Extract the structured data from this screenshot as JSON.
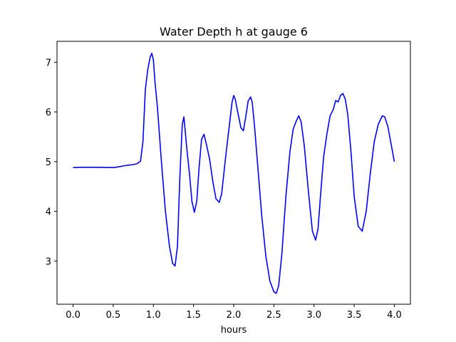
{
  "chart_data": {
    "type": "line",
    "title": "Water Depth h at gauge 6",
    "xlabel": "hours",
    "ylabel": "",
    "xlim": [
      -0.2,
      4.2
    ],
    "ylim": [
      2.13,
      7.42
    ],
    "xticks": [
      0.0,
      0.5,
      1.0,
      1.5,
      2.0,
      2.5,
      3.0,
      3.5,
      4.0
    ],
    "xtick_labels": [
      "0.0",
      "0.5",
      "1.0",
      "1.5",
      "2.0",
      "2.5",
      "3.0",
      "3.5",
      "4.0"
    ],
    "yticks": [
      3,
      4,
      5,
      6,
      7
    ],
    "ytick_labels": [
      "3",
      "4",
      "5",
      "6",
      "7"
    ],
    "grid": false,
    "legend": "none",
    "series": [
      {
        "color": "#0000ff",
        "x": [
          0.0,
          0.1,
          0.2,
          0.3,
          0.4,
          0.5,
          0.55,
          0.6,
          0.65,
          0.7,
          0.75,
          0.8,
          0.84,
          0.87,
          0.9,
          0.93,
          0.96,
          0.98,
          1.0,
          1.02,
          1.05,
          1.1,
          1.15,
          1.2,
          1.24,
          1.27,
          1.3,
          1.33,
          1.36,
          1.38,
          1.4,
          1.42,
          1.45,
          1.48,
          1.51,
          1.54,
          1.57,
          1.6,
          1.63,
          1.66,
          1.7,
          1.74,
          1.78,
          1.82,
          1.85,
          1.9,
          1.94,
          1.98,
          2.0,
          2.02,
          2.05,
          2.09,
          2.12,
          2.15,
          2.18,
          2.21,
          2.23,
          2.26,
          2.3,
          2.35,
          2.4,
          2.45,
          2.5,
          2.53,
          2.56,
          2.6,
          2.65,
          2.7,
          2.74,
          2.78,
          2.81,
          2.84,
          2.88,
          2.93,
          2.98,
          3.02,
          3.05,
          3.08,
          3.12,
          3.16,
          3.2,
          3.24,
          3.27,
          3.3,
          3.33,
          3.36,
          3.39,
          3.42,
          3.46,
          3.5,
          3.55,
          3.6,
          3.65,
          3.7,
          3.75,
          3.8,
          3.85,
          3.88,
          3.92,
          3.96,
          4.0
        ],
        "y": [
          4.88,
          4.885,
          4.885,
          4.885,
          4.882,
          4.88,
          4.89,
          4.905,
          4.92,
          4.93,
          4.94,
          4.96,
          5.01,
          5.4,
          6.45,
          6.85,
          7.1,
          7.18,
          7.05,
          6.6,
          6.1,
          5.0,
          4.0,
          3.3,
          2.95,
          2.9,
          3.3,
          4.7,
          5.75,
          5.9,
          5.55,
          5.2,
          4.75,
          4.2,
          3.98,
          4.2,
          4.9,
          5.45,
          5.55,
          5.35,
          5.05,
          4.6,
          4.25,
          4.18,
          4.35,
          5.1,
          5.65,
          6.2,
          6.33,
          6.25,
          6.0,
          5.68,
          5.62,
          5.9,
          6.22,
          6.3,
          6.2,
          5.7,
          4.9,
          3.9,
          3.1,
          2.6,
          2.38,
          2.35,
          2.5,
          3.15,
          4.3,
          5.2,
          5.65,
          5.82,
          5.92,
          5.8,
          5.3,
          4.4,
          3.6,
          3.42,
          3.65,
          4.3,
          5.1,
          5.55,
          5.92,
          6.05,
          6.23,
          6.2,
          6.33,
          6.37,
          6.25,
          5.95,
          5.2,
          4.3,
          3.7,
          3.6,
          4.0,
          4.75,
          5.4,
          5.75,
          5.92,
          5.9,
          5.7,
          5.35,
          5.0
        ]
      }
    ]
  }
}
